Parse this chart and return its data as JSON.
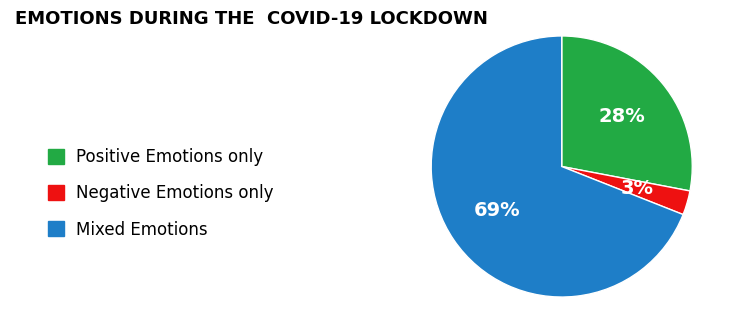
{
  "title": "EMOTIONS DURING THE  COVID-19 LOCKDOWN",
  "slices": [
    28,
    3,
    69
  ],
  "labels": [
    "28%",
    "3%",
    "69%"
  ],
  "colors": [
    "#22aa44",
    "#ee1111",
    "#1e7ec8"
  ],
  "legend_labels": [
    "Positive Emotions only",
    "Negative Emotions only",
    "Mixed Emotions"
  ],
  "legend_colors": [
    "#22aa44",
    "#ee1111",
    "#1e7ec8"
  ],
  "startangle": 90,
  "background_color": "#ffffff",
  "title_fontsize": 13,
  "label_fontsize": 14,
  "legend_fontsize": 12
}
